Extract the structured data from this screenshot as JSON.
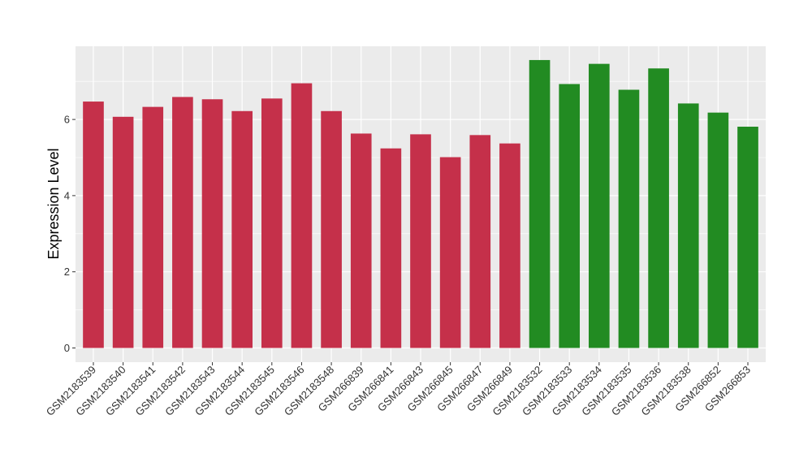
{
  "chart_data": {
    "type": "bar",
    "ylabel": "Expression Level",
    "xlabel": "",
    "ylim": [
      0,
      7.8
    ],
    "yticks": [
      0,
      2,
      4,
      6
    ],
    "grid": true,
    "colors": {
      "group_a": "#c5304a",
      "group_b": "#228b22",
      "panel": "#ebebeb",
      "grid": "#ffffff"
    },
    "categories": [
      "GSM2183539",
      "GSM2183540",
      "GSM2183541",
      "GSM2183542",
      "GSM2183543",
      "GSM2183544",
      "GSM2183545",
      "GSM2183546",
      "GSM2183548",
      "GSM266839",
      "GSM266841",
      "GSM266843",
      "GSM266845",
      "GSM266847",
      "GSM266849",
      "GSM2183532",
      "GSM2183533",
      "GSM2183534",
      "GSM2183535",
      "GSM2183536",
      "GSM2183538",
      "GSM266852",
      "GSM266853"
    ],
    "values": [
      6.47,
      6.07,
      6.33,
      6.59,
      6.53,
      6.22,
      6.55,
      6.95,
      6.22,
      5.63,
      5.24,
      5.61,
      5.01,
      5.59,
      5.37,
      7.56,
      6.93,
      7.46,
      6.78,
      7.34,
      6.42,
      6.18,
      5.81
    ],
    "groups": [
      "a",
      "a",
      "a",
      "a",
      "a",
      "a",
      "a",
      "a",
      "a",
      "a",
      "a",
      "a",
      "a",
      "a",
      "a",
      "b",
      "b",
      "b",
      "b",
      "b",
      "b",
      "b",
      "b"
    ]
  }
}
